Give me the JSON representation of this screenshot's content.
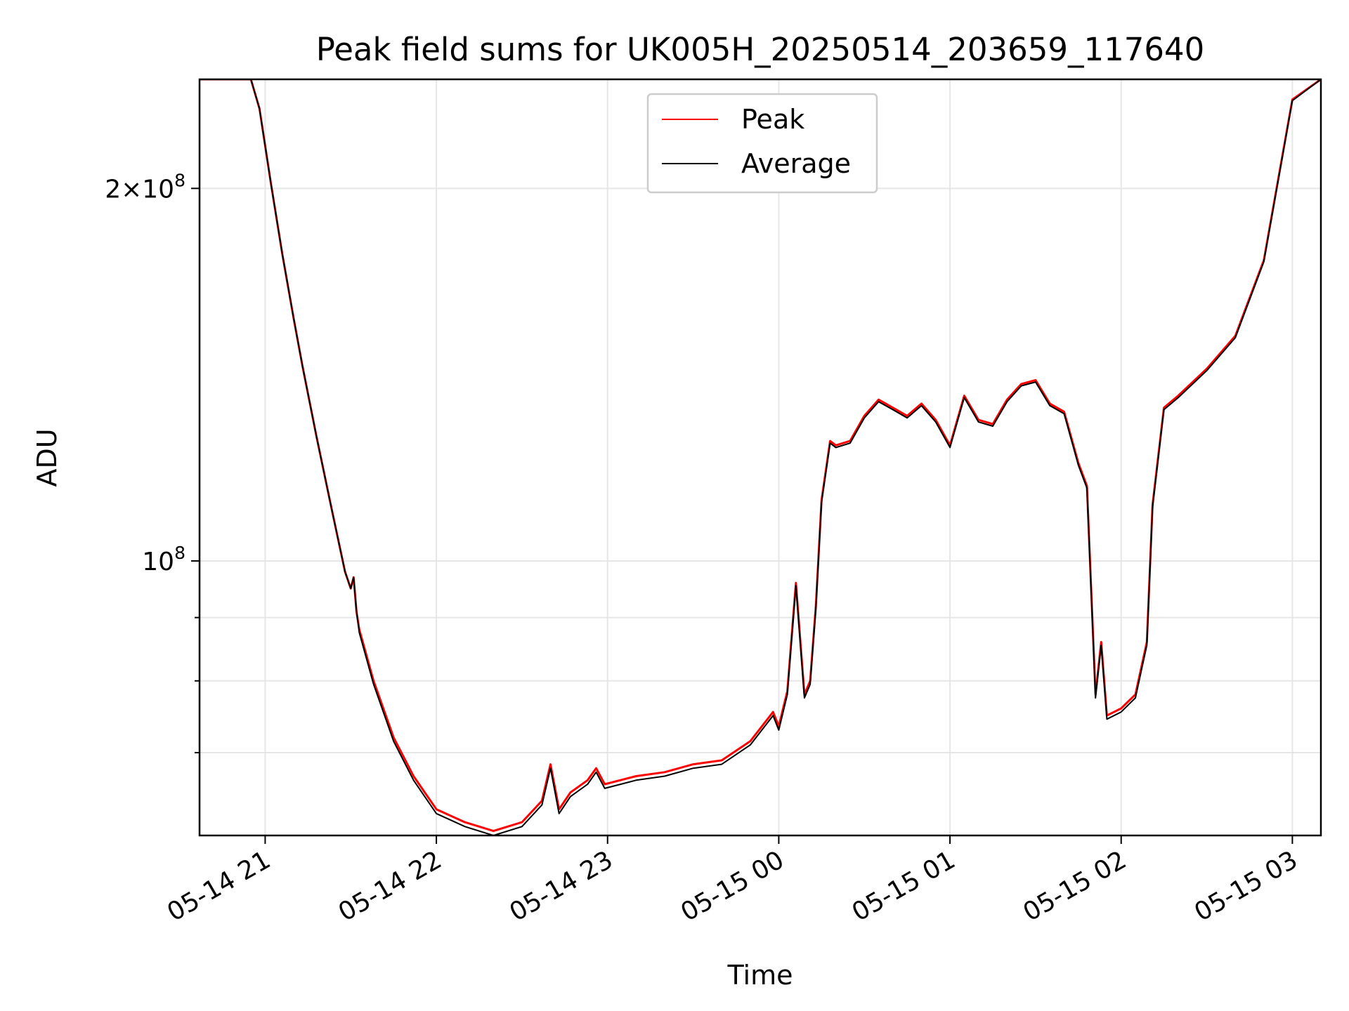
{
  "chart_data": {
    "type": "line",
    "title": "Peak field sums for UK005H_20250514_203659_117640",
    "xlabel": "Time",
    "ylabel": "ADU",
    "yscale": "log",
    "grid": true,
    "legend_position": "top-center",
    "xlim": [
      "2025-05-14 20:37",
      "2025-05-15 03:10"
    ],
    "ylim": [
      60000000,
      245000000
    ],
    "x_ticks": [
      {
        "value": "2025-05-14 21:00",
        "label": "05-14 21"
      },
      {
        "value": "2025-05-14 22:00",
        "label": "05-14 22"
      },
      {
        "value": "2025-05-14 23:00",
        "label": "05-14 23"
      },
      {
        "value": "2025-05-15 00:00",
        "label": "05-15 00"
      },
      {
        "value": "2025-05-15 01:00",
        "label": "05-15 01"
      },
      {
        "value": "2025-05-15 02:00",
        "label": "05-15 02"
      },
      {
        "value": "2025-05-15 03:00",
        "label": "05-15 03"
      }
    ],
    "y_major_ticks": [
      {
        "value": 200000000,
        "mantissa": "2",
        "times": "×",
        "base": "10",
        "exponent": "8"
      },
      {
        "value": 100000000,
        "mantissa": "",
        "times": "",
        "base": "10",
        "exponent": "8"
      }
    ],
    "y_minor_ticks": [
      70000000,
      80000000,
      90000000
    ],
    "series": [
      {
        "name": "Peak",
        "color": "#ff0000",
        "x": [
          "2025-05-14 20:37",
          "2025-05-14 20:55",
          "2025-05-14 20:58",
          "2025-05-14 21:02",
          "2025-05-14 21:06",
          "2025-05-14 21:10",
          "2025-05-14 21:13",
          "2025-05-14 21:18",
          "2025-05-14 21:23",
          "2025-05-14 21:28",
          "2025-05-14 21:30",
          "2025-05-14 21:31",
          "2025-05-14 21:32",
          "2025-05-14 21:33",
          "2025-05-14 21:38",
          "2025-05-14 21:45",
          "2025-05-14 21:52",
          "2025-05-14 22:00",
          "2025-05-14 22:10",
          "2025-05-14 22:20",
          "2025-05-14 22:30",
          "2025-05-14 22:37",
          "2025-05-14 22:40",
          "2025-05-14 22:43",
          "2025-05-14 22:47",
          "2025-05-14 22:53",
          "2025-05-14 22:56",
          "2025-05-14 22:59",
          "2025-05-14 23:10",
          "2025-05-14 23:20",
          "2025-05-14 23:30",
          "2025-05-14 23:40",
          "2025-05-14 23:50",
          "2025-05-14 23:58",
          "2025-05-15 00:00",
          "2025-05-15 00:03",
          "2025-05-15 00:06",
          "2025-05-15 00:09",
          "2025-05-15 00:11",
          "2025-05-15 00:13",
          "2025-05-15 00:15",
          "2025-05-15 00:18",
          "2025-05-15 00:20",
          "2025-05-15 00:25",
          "2025-05-15 00:30",
          "2025-05-15 00:35",
          "2025-05-15 00:40",
          "2025-05-15 00:45",
          "2025-05-15 00:50",
          "2025-05-15 00:55",
          "2025-05-15 01:00",
          "2025-05-15 01:05",
          "2025-05-15 01:10",
          "2025-05-15 01:15",
          "2025-05-15 01:20",
          "2025-05-15 01:25",
          "2025-05-15 01:30",
          "2025-05-15 01:35",
          "2025-05-15 01:40",
          "2025-05-15 01:45",
          "2025-05-15 01:48",
          "2025-05-15 01:51",
          "2025-05-15 01:53",
          "2025-05-15 01:55",
          "2025-05-15 02:00",
          "2025-05-15 02:05",
          "2025-05-15 02:09",
          "2025-05-15 02:11",
          "2025-05-15 02:15",
          "2025-05-15 02:20",
          "2025-05-15 02:30",
          "2025-05-15 02:40",
          "2025-05-15 02:50",
          "2025-05-15 03:00",
          "2025-05-15 03:10"
        ],
        "values": [
          245000000,
          245000000,
          232000000,
          202000000,
          177000000,
          157000000,
          144000000,
          126000000,
          111000000,
          98000000,
          95000000,
          97000000,
          91000000,
          88000000,
          80000000,
          72000000,
          67000000,
          63000000,
          61500000,
          60500000,
          61500000,
          64000000,
          68500000,
          63000000,
          65000000,
          66500000,
          68000000,
          66000000,
          67000000,
          67500000,
          68500000,
          69000000,
          71500000,
          75500000,
          73500000,
          78500000,
          96000000,
          78000000,
          80000000,
          92000000,
          112000000,
          125000000,
          124000000,
          125000000,
          131000000,
          135000000,
          133000000,
          131000000,
          134000000,
          130000000,
          124000000,
          136000000,
          130000000,
          129000000,
          135000000,
          139000000,
          140000000,
          134000000,
          132000000,
          120000000,
          115000000,
          78000000,
          86000000,
          75000000,
          76000000,
          78000000,
          86000000,
          111000000,
          133000000,
          136000000,
          143000000,
          152000000,
          175000000,
          236000000,
          245000000
        ]
      },
      {
        "name": "Average",
        "color": "#000000",
        "x": [
          "2025-05-14 20:37",
          "2025-05-14 20:55",
          "2025-05-14 20:58",
          "2025-05-14 21:02",
          "2025-05-14 21:06",
          "2025-05-14 21:10",
          "2025-05-14 21:13",
          "2025-05-14 21:18",
          "2025-05-14 21:23",
          "2025-05-14 21:28",
          "2025-05-14 21:30",
          "2025-05-14 21:31",
          "2025-05-14 21:32",
          "2025-05-14 21:33",
          "2025-05-14 21:38",
          "2025-05-14 21:45",
          "2025-05-14 21:52",
          "2025-05-14 22:00",
          "2025-05-14 22:10",
          "2025-05-14 22:20",
          "2025-05-14 22:30",
          "2025-05-14 22:37",
          "2025-05-14 22:40",
          "2025-05-14 22:43",
          "2025-05-14 22:47",
          "2025-05-14 22:53",
          "2025-05-14 22:56",
          "2025-05-14 22:59",
          "2025-05-14 23:10",
          "2025-05-14 23:20",
          "2025-05-14 23:30",
          "2025-05-14 23:40",
          "2025-05-14 23:50",
          "2025-05-14 23:58",
          "2025-05-15 00:00",
          "2025-05-15 00:03",
          "2025-05-15 00:06",
          "2025-05-15 00:09",
          "2025-05-15 00:11",
          "2025-05-15 00:13",
          "2025-05-15 00:15",
          "2025-05-15 00:18",
          "2025-05-15 00:20",
          "2025-05-15 00:25",
          "2025-05-15 00:30",
          "2025-05-15 00:35",
          "2025-05-15 00:40",
          "2025-05-15 00:45",
          "2025-05-15 00:50",
          "2025-05-15 00:55",
          "2025-05-15 01:00",
          "2025-05-15 01:05",
          "2025-05-15 01:10",
          "2025-05-15 01:15",
          "2025-05-15 01:20",
          "2025-05-15 01:25",
          "2025-05-15 01:30",
          "2025-05-15 01:35",
          "2025-05-15 01:40",
          "2025-05-15 01:45",
          "2025-05-15 01:48",
          "2025-05-15 01:51",
          "2025-05-15 01:53",
          "2025-05-15 01:55",
          "2025-05-15 02:00",
          "2025-05-15 02:05",
          "2025-05-15 02:09",
          "2025-05-15 02:11",
          "2025-05-15 02:15",
          "2025-05-15 02:20",
          "2025-05-15 02:30",
          "2025-05-15 02:40",
          "2025-05-15 02:50",
          "2025-05-15 03:00",
          "2025-05-15 03:10"
        ],
        "values": [
          245000000,
          245000000,
          232000000,
          202000000,
          177000000,
          157000000,
          144000000,
          126000000,
          111000000,
          98000000,
          95000000,
          97000000,
          91000000,
          87500000,
          79500000,
          71500000,
          66500000,
          62500000,
          61000000,
          60000000,
          61000000,
          63500000,
          68000000,
          62500000,
          64500000,
          66000000,
          67500000,
          65500000,
          66500000,
          67000000,
          68000000,
          68500000,
          71000000,
          75000000,
          73000000,
          78000000,
          95500000,
          77500000,
          79500000,
          91500000,
          111500000,
          124500000,
          123500000,
          124500000,
          130500000,
          134500000,
          132500000,
          130500000,
          133500000,
          129500000,
          123500000,
          135500000,
          129500000,
          128500000,
          134500000,
          138500000,
          139500000,
          133500000,
          131500000,
          119500000,
          114500000,
          77500000,
          85500000,
          74500000,
          75500000,
          77500000,
          85500000,
          110500000,
          132500000,
          135500000,
          142500000,
          151500000,
          174500000,
          235500000,
          245000000
        ]
      }
    ]
  }
}
